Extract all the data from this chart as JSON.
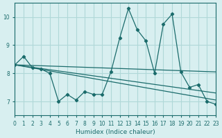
{
  "xlabel": "Humidex (Indice chaleur)",
  "bg_color": "#d8eff0",
  "grid_color": "#b0d8d8",
  "line_color": "#1a6b6b",
  "x_min": 0,
  "x_max": 23,
  "y_min": 6.5,
  "y_max": 10.5,
  "yticks": [
    7,
    8,
    9,
    10
  ],
  "xticks": [
    0,
    1,
    2,
    3,
    4,
    5,
    6,
    7,
    8,
    9,
    10,
    11,
    12,
    13,
    14,
    15,
    16,
    17,
    18,
    19,
    20,
    21,
    22,
    23
  ],
  "lines": [
    {
      "x": [
        0,
        1,
        2,
        3,
        4,
        5,
        6,
        7,
        8,
        9,
        10,
        11,
        12,
        13,
        14,
        15,
        16,
        17,
        18,
        19,
        20,
        21,
        22,
        23
      ],
      "y": [
        8.3,
        8.6,
        8.2,
        8.15,
        8.0,
        7.0,
        7.25,
        7.05,
        7.35,
        7.25,
        7.25,
        8.05,
        9.25,
        10.3,
        9.55,
        9.15,
        8.0,
        9.75,
        10.1,
        8.05,
        7.5,
        7.6,
        7.0,
        6.9
      ]
    },
    {
      "x": [
        0,
        23
      ],
      "y": [
        8.3,
        7.05
      ]
    },
    {
      "x": [
        0,
        23
      ],
      "y": [
        8.3,
        7.3
      ]
    },
    {
      "x": [
        0,
        23
      ],
      "y": [
        8.3,
        8.05
      ]
    }
  ]
}
